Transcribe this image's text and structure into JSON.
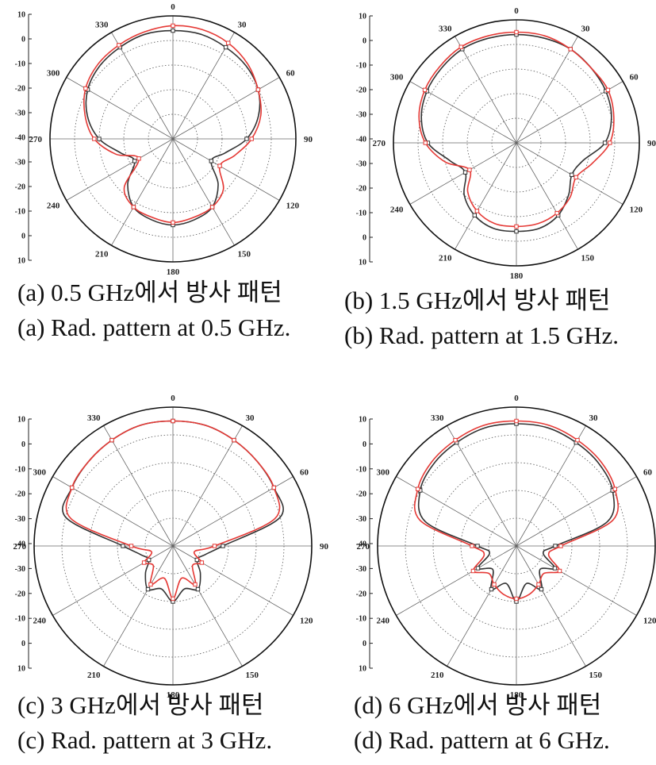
{
  "chart_data": [
    {
      "type": "polar",
      "frequency_ghz": 0.5,
      "caption_ko": "(a) 0.5 GHz에서 방사 패턴",
      "caption_en": "(a) Rad. pattern at 0.5 GHz.",
      "r_ticks": [
        "10",
        "0",
        "-10",
        "-20",
        "-30",
        "-40",
        "-30",
        "-20",
        "-10",
        "0",
        "10"
      ],
      "angle_labels": [
        "0",
        "30",
        "60",
        "90",
        "120",
        "150",
        "180",
        "210",
        "240",
        "270",
        "300",
        "330"
      ],
      "rlim": [
        -40,
        10
      ],
      "series": [
        {
          "color": "#333333",
          "theta_deg": [
            0,
            15,
            30,
            45,
            60,
            75,
            90,
            105,
            120,
            135,
            150,
            165,
            180,
            195,
            210,
            225,
            240,
            255,
            270,
            285,
            300,
            315,
            330,
            345
          ],
          "values": [
            4,
            4,
            3,
            2,
            0,
            -4,
            -10,
            -18,
            -22,
            -14,
            -8,
            -6,
            -5,
            -6,
            -8,
            -14,
            -22,
            -18,
            -10,
            -4,
            0,
            2,
            3,
            4
          ]
        },
        {
          "color": "#e53935",
          "theta_deg": [
            0,
            15,
            30,
            45,
            60,
            75,
            90,
            105,
            120,
            135,
            150,
            165,
            180,
            195,
            210,
            225,
            240,
            255,
            270,
            285,
            300,
            315,
            330,
            345
          ],
          "values": [
            6,
            6,
            5,
            3,
            0,
            -3,
            -8,
            -14,
            -18,
            -11,
            -8,
            -7,
            -6,
            -7,
            -8,
            -12,
            -24,
            -16,
            -8,
            -3,
            1,
            3,
            4,
            5
          ]
        }
      ]
    },
    {
      "type": "polar",
      "frequency_ghz": 1.5,
      "caption_ko": "(b) 1.5 GHz에서 방사 패턴",
      "caption_en": "(b) Rad. pattern at 1.5 GHz.",
      "r_ticks": [
        "10",
        "0",
        "-10",
        "-20",
        "-30",
        "-40",
        "-30",
        "-20",
        "-10",
        "0",
        "10"
      ],
      "angle_labels": [
        "0",
        "30",
        "60",
        "90",
        "120",
        "150",
        "180",
        "210",
        "240",
        "270",
        "300",
        "330"
      ],
      "rlim": [
        -40,
        10
      ],
      "series": [
        {
          "color": "#333333",
          "theta_deg": [
            0,
            15,
            30,
            45,
            60,
            75,
            90,
            105,
            120,
            135,
            150,
            165,
            180,
            195,
            210,
            225,
            240,
            255,
            270,
            285,
            300,
            315,
            330,
            345
          ],
          "values": [
            4,
            4,
            4,
            3,
            2,
            0,
            -4,
            -12,
            -14,
            -10,
            -6,
            -4,
            -4,
            -4,
            -6,
            -10,
            -16,
            -12,
            -4,
            0,
            2,
            3,
            4,
            4
          ]
        },
        {
          "color": "#e53935",
          "theta_deg": [
            0,
            15,
            30,
            45,
            60,
            75,
            90,
            105,
            120,
            135,
            150,
            165,
            180,
            195,
            210,
            225,
            240,
            255,
            270,
            285,
            300,
            315,
            330,
            345
          ],
          "values": [
            5,
            5,
            4,
            3,
            3,
            1,
            -2,
            -8,
            -12,
            -9,
            -7,
            -6,
            -6,
            -6,
            -8,
            -12,
            -18,
            -10,
            -3,
            1,
            3,
            4,
            5,
            5
          ]
        }
      ]
    },
    {
      "type": "polar",
      "frequency_ghz": 3,
      "caption_ko": "(c) 3 GHz에서 방사 패턴",
      "caption_en": "(c) Rad. pattern at 3 GHz.",
      "r_ticks": [
        "10",
        "0",
        "-10",
        "-20",
        "-30",
        "-40",
        "-30",
        "-20",
        "-10",
        "0",
        "10"
      ],
      "angle_labels": [
        "0",
        "30",
        "60",
        "90",
        "120",
        "150",
        "180",
        "210",
        "240",
        "270",
        "300",
        "330"
      ],
      "rlim": [
        -40,
        10
      ],
      "series": [
        {
          "color": "#333333",
          "theta_deg": [
            0,
            15,
            30,
            45,
            60,
            75,
            90,
            105,
            120,
            135,
            150,
            165,
            180,
            195,
            210,
            225,
            240,
            255,
            270,
            285,
            300,
            315,
            330,
            345
          ],
          "values": [
            5,
            5,
            4,
            3,
            2,
            0,
            -22,
            -28,
            -30,
            -26,
            -22,
            -24,
            -20,
            -24,
            -22,
            -26,
            -30,
            -28,
            -22,
            0,
            2,
            3,
            4,
            5
          ]
        },
        {
          "color": "#e53935",
          "theta_deg": [
            0,
            15,
            30,
            45,
            60,
            75,
            90,
            105,
            120,
            135,
            150,
            165,
            180,
            195,
            210,
            225,
            240,
            255,
            270,
            285,
            300,
            315,
            330,
            345
          ],
          "values": [
            5,
            5,
            4,
            3,
            2,
            -2,
            -25,
            -32,
            -28,
            -30,
            -24,
            -28,
            -21,
            -28,
            -24,
            -30,
            -28,
            -32,
            -25,
            -2,
            2,
            3,
            4,
            5
          ]
        }
      ]
    },
    {
      "type": "polar",
      "frequency_ghz": 6,
      "caption_ko": "(d) 6 GHz에서 방사 패턴",
      "caption_en": "(d) Rad. pattern at 6 GHz.",
      "r_ticks": [
        "10",
        "0",
        "-10",
        "-20",
        "-30",
        "-40",
        "-30",
        "-20",
        "-10",
        "0",
        "10"
      ],
      "angle_labels": [
        "0",
        "30",
        "60",
        "90",
        "120",
        "150",
        "180",
        "210",
        "240",
        "270",
        "300",
        "330"
      ],
      "rlim": [
        -40,
        10
      ],
      "series": [
        {
          "color": "#333333",
          "theta_deg": [
            0,
            15,
            30,
            45,
            60,
            75,
            90,
            105,
            120,
            135,
            150,
            165,
            180,
            195,
            210,
            225,
            240,
            255,
            270,
            285,
            300,
            315,
            330,
            345
          ],
          "values": [
            4,
            4,
            3,
            2,
            0,
            -6,
            -26,
            -30,
            -24,
            -28,
            -22,
            -26,
            -20,
            -26,
            -22,
            -28,
            -24,
            -30,
            -26,
            -6,
            0,
            2,
            3,
            4
          ]
        },
        {
          "color": "#e53935",
          "theta_deg": [
            0,
            15,
            30,
            45,
            60,
            75,
            90,
            105,
            120,
            135,
            150,
            165,
            180,
            195,
            210,
            225,
            240,
            255,
            270,
            285,
            300,
            315,
            330,
            345
          ],
          "values": [
            5,
            5,
            4,
            3,
            1,
            -4,
            -24,
            -28,
            -22,
            -26,
            -24,
            -22,
            -21,
            -22,
            -24,
            -26,
            -22,
            -28,
            -24,
            -4,
            1,
            3,
            4,
            5
          ]
        }
      ]
    }
  ]
}
